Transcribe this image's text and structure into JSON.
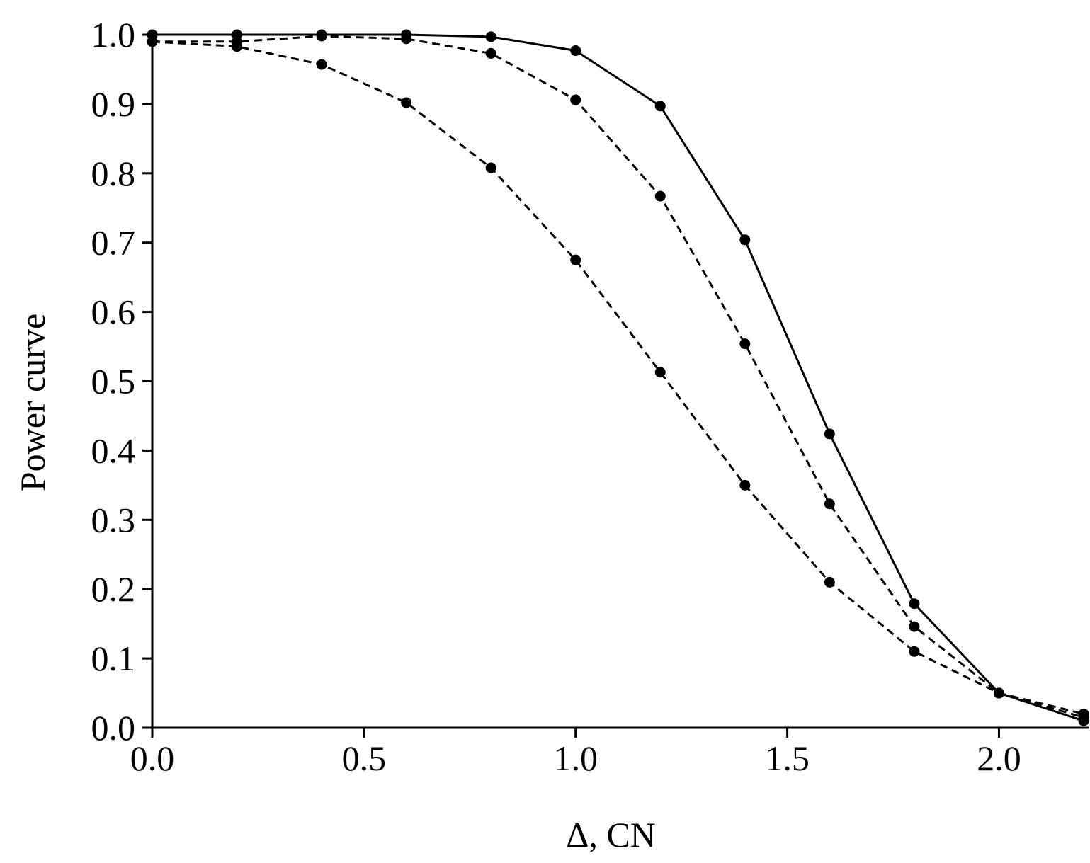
{
  "chart_data": {
    "type": "line",
    "title": "",
    "xlabel": "Δ, CN",
    "ylabel": "Power curve",
    "xlim": [
      0.0,
      2.2
    ],
    "ylim": [
      0.0,
      1.0
    ],
    "x_ticks": [
      "0.0",
      "0.5",
      "1.0",
      "1.5",
      "2.0"
    ],
    "y_ticks": [
      "0.0",
      "0.1",
      "0.2",
      "0.3",
      "0.4",
      "0.5",
      "0.6",
      "0.7",
      "0.8",
      "0.9",
      "1.0"
    ],
    "grid": false,
    "legend": "none",
    "x": [
      0.0,
      0.2,
      0.4,
      0.6,
      0.8,
      1.0,
      1.2,
      1.4,
      1.6,
      1.8,
      2.0,
      2.2
    ],
    "series": [
      {
        "line_style": "solid",
        "values": [
          1.0,
          1.0,
          1.0,
          1.0,
          0.997,
          0.977,
          0.897,
          0.704,
          0.424,
          0.179,
          0.05,
          0.01
        ]
      },
      {
        "line_style": "dashed",
        "values": [
          0.99,
          0.99,
          0.998,
          0.994,
          0.973,
          0.906,
          0.767,
          0.554,
          0.323,
          0.146,
          0.05,
          0.02
        ]
      },
      {
        "line_style": "dashed",
        "values": [
          0.99,
          0.983,
          0.957,
          0.902,
          0.808,
          0.675,
          0.513,
          0.35,
          0.21,
          0.11,
          0.05,
          0.015
        ]
      }
    ],
    "colors": {
      "line": "#000000",
      "marker": "#000000",
      "background": "#ffffff"
    }
  }
}
